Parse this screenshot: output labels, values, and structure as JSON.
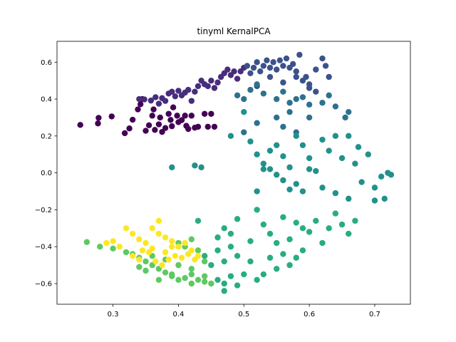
{
  "chart_data": {
    "type": "scatter",
    "title": "tinyml KernalPCA",
    "xlabel": "",
    "ylabel": "",
    "xlim": [
      0.2144,
      0.7545
    ],
    "ylim": [
      -0.712,
      0.713
    ],
    "x_ticks": [
      "0.3",
      "0.4",
      "0.5",
      "0.6",
      "0.7"
    ],
    "y_ticks": [
      "-0.6",
      "-0.4",
      "-0.2",
      "0.0",
      "0.2",
      "0.4",
      "0.6"
    ],
    "grid": false,
    "legend": "none",
    "colormap": "viridis",
    "series": [
      {
        "color": "#440154",
        "points": [
          [
            0.25,
            0.26
          ],
          [
            0.277,
            0.268
          ],
          [
            0.278,
            0.298
          ],
          [
            0.298,
            0.306
          ],
          [
            0.318,
            0.215
          ],
          [
            0.325,
            0.241
          ],
          [
            0.33,
            0.288
          ],
          [
            0.338,
            0.344
          ],
          [
            0.342,
            0.372
          ],
          [
            0.345,
            0.4
          ],
          [
            0.35,
            0.228
          ],
          [
            0.355,
            0.258
          ],
          [
            0.36,
            0.31
          ],
          [
            0.362,
            0.344
          ],
          [
            0.364,
            0.233
          ],
          [
            0.37,
            0.263
          ],
          [
            0.372,
            0.3
          ],
          [
            0.375,
            0.222
          ],
          [
            0.38,
            0.243
          ],
          [
            0.385,
            0.32
          ],
          [
            0.388,
            0.287
          ],
          [
            0.39,
            0.253
          ],
          [
            0.392,
            0.355
          ],
          [
            0.398,
            0.31
          ],
          [
            0.4,
            0.275
          ],
          [
            0.405,
            0.286
          ],
          [
            0.41,
            0.31
          ],
          [
            0.412,
            0.255
          ],
          [
            0.415,
            0.238
          ],
          [
            0.42,
            0.31
          ],
          [
            0.425,
            0.245
          ],
          [
            0.43,
            0.25
          ],
          [
            0.44,
            0.32
          ],
          [
            0.445,
            0.25
          ],
          [
            0.45,
            0.32
          ],
          [
            0.455,
            0.25
          ]
        ]
      },
      {
        "color": "#472d7b",
        "points": [
          [
            0.34,
            0.4
          ],
          [
            0.348,
            0.398
          ],
          [
            0.358,
            0.392
          ],
          [
            0.365,
            0.41
          ],
          [
            0.37,
            0.375
          ],
          [
            0.375,
            0.405
          ],
          [
            0.38,
            0.39
          ],
          [
            0.385,
            0.43
          ],
          [
            0.39,
            0.44
          ],
          [
            0.395,
            0.415
          ],
          [
            0.4,
            0.445
          ],
          [
            0.405,
            0.42
          ],
          [
            0.41,
            0.435
          ],
          [
            0.415,
            0.45
          ],
          [
            0.42,
            0.39
          ],
          [
            0.425,
            0.44
          ],
          [
            0.43,
            0.47
          ],
          [
            0.435,
            0.5
          ],
          [
            0.44,
            0.48
          ],
          [
            0.445,
            0.47
          ],
          [
            0.45,
            0.5
          ],
          [
            0.455,
            0.46
          ],
          [
            0.46,
            0.49
          ],
          [
            0.465,
            0.52
          ],
          [
            0.47,
            0.54
          ],
          [
            0.475,
            0.56
          ],
          [
            0.48,
            0.53
          ],
          [
            0.485,
            0.55
          ],
          [
            0.49,
            0.51
          ],
          [
            0.495,
            0.55
          ],
          [
            0.5,
            0.57
          ]
        ]
      },
      {
        "color": "#3b528b",
        "points": [
          [
            0.505,
            0.58
          ],
          [
            0.51,
            0.54
          ],
          [
            0.515,
            0.57
          ],
          [
            0.52,
            0.6
          ],
          [
            0.525,
            0.55
          ],
          [
            0.53,
            0.58
          ],
          [
            0.535,
            0.61
          ],
          [
            0.54,
            0.57
          ],
          [
            0.545,
            0.6
          ],
          [
            0.55,
            0.56
          ],
          [
            0.555,
            0.61
          ],
          [
            0.56,
            0.58
          ],
          [
            0.565,
            0.62
          ],
          [
            0.57,
            0.57
          ],
          [
            0.575,
            0.59
          ],
          [
            0.58,
            0.55
          ],
          [
            0.585,
            0.64
          ],
          [
            0.59,
            0.5
          ],
          [
            0.595,
            0.52
          ],
          [
            0.6,
            0.48
          ],
          [
            0.61,
            0.56
          ],
          [
            0.62,
            0.62
          ],
          [
            0.625,
            0.58
          ],
          [
            0.63,
            0.52
          ],
          [
            0.52,
            0.47
          ],
          [
            0.54,
            0.52
          ],
          [
            0.56,
            0.49
          ],
          [
            0.58,
            0.52
          ],
          [
            0.6,
            0.46
          ],
          [
            0.61,
            0.44
          ]
        ]
      },
      {
        "color": "#2c728e",
        "points": [
          [
            0.49,
            0.42
          ],
          [
            0.5,
            0.4
          ],
          [
            0.51,
            0.45
          ],
          [
            0.52,
            0.48
          ],
          [
            0.53,
            0.43
          ],
          [
            0.55,
            0.4
          ],
          [
            0.56,
            0.44
          ],
          [
            0.57,
            0.38
          ],
          [
            0.58,
            0.4
          ],
          [
            0.59,
            0.41
          ],
          [
            0.6,
            0.37
          ],
          [
            0.62,
            0.38
          ],
          [
            0.63,
            0.42
          ],
          [
            0.64,
            0.36
          ],
          [
            0.66,
            0.33
          ],
          [
            0.655,
            0.3
          ],
          [
            0.55,
            0.3
          ],
          [
            0.57,
            0.33
          ],
          [
            0.56,
            0.25
          ],
          [
            0.58,
            0.22
          ],
          [
            0.6,
            0.3
          ],
          [
            0.52,
            0.27
          ],
          [
            0.5,
            0.22
          ]
        ]
      },
      {
        "color": "#21918c",
        "points": [
          [
            0.39,
            0.03
          ],
          [
            0.425,
            0.04
          ],
          [
            0.435,
            0.03
          ],
          [
            0.48,
            0.2
          ],
          [
            0.5,
            0.33
          ],
          [
            0.51,
            0.17
          ],
          [
            0.52,
            0.1
          ],
          [
            0.53,
            0.02
          ],
          [
            0.54,
            0.12
          ],
          [
            0.55,
            0.15
          ],
          [
            0.56,
            0.09
          ],
          [
            0.57,
            0.03
          ],
          [
            0.58,
            0.2
          ],
          [
            0.59,
            0.15
          ],
          [
            0.6,
            0.08
          ],
          [
            0.61,
            0.01
          ],
          [
            0.62,
            0.18
          ],
          [
            0.63,
            0.12
          ],
          [
            0.64,
            0.2
          ],
          [
            0.65,
            0.08
          ],
          [
            0.66,
            0.2
          ],
          [
            0.67,
            0.05
          ],
          [
            0.675,
            0.14
          ],
          [
            0.68,
            -0.05
          ],
          [
            0.69,
            0.1
          ],
          [
            0.7,
            -0.08
          ],
          [
            0.71,
            -0.02
          ],
          [
            0.72,
            0.0
          ],
          [
            0.725,
            -0.01
          ],
          [
            0.715,
            -0.14
          ],
          [
            0.6,
            0.02
          ],
          [
            0.59,
            -0.1
          ],
          [
            0.58,
            -0.06
          ],
          [
            0.57,
            -0.09
          ],
          [
            0.56,
            -0.04
          ],
          [
            0.55,
            -0.01
          ],
          [
            0.54,
            0.02
          ],
          [
            0.53,
            0.05
          ],
          [
            0.52,
            -0.1
          ],
          [
            0.62,
            -0.08
          ],
          [
            0.64,
            -0.11
          ],
          [
            0.66,
            -0.14
          ],
          [
            0.7,
            -0.15
          ]
        ]
      },
      {
        "color": "#27ad81",
        "points": [
          [
            0.43,
            -0.26
          ],
          [
            0.46,
            -0.35
          ],
          [
            0.47,
            -0.3
          ],
          [
            0.48,
            -0.33
          ],
          [
            0.49,
            -0.25
          ],
          [
            0.51,
            -0.37
          ],
          [
            0.52,
            -0.2
          ],
          [
            0.53,
            -0.28
          ],
          [
            0.54,
            -0.33
          ],
          [
            0.55,
            -0.38
          ],
          [
            0.56,
            -0.24
          ],
          [
            0.57,
            -0.36
          ],
          [
            0.58,
            -0.27
          ],
          [
            0.59,
            -0.3
          ],
          [
            0.6,
            -0.32
          ],
          [
            0.61,
            -0.26
          ],
          [
            0.62,
            -0.38
          ],
          [
            0.63,
            -0.3
          ],
          [
            0.64,
            -0.22
          ],
          [
            0.65,
            -0.28
          ],
          [
            0.66,
            -0.33
          ],
          [
            0.67,
            -0.26
          ],
          [
            0.44,
            -0.45
          ],
          [
            0.45,
            -0.5
          ],
          [
            0.46,
            -0.42
          ],
          [
            0.47,
            -0.48
          ],
          [
            0.48,
            -0.4
          ],
          [
            0.49,
            -0.45
          ],
          [
            0.5,
            -0.55
          ],
          [
            0.51,
            -0.48
          ],
          [
            0.52,
            -0.58
          ],
          [
            0.53,
            -0.55
          ],
          [
            0.54,
            -0.46
          ],
          [
            0.55,
            -0.52
          ],
          [
            0.56,
            -0.44
          ],
          [
            0.57,
            -0.5
          ],
          [
            0.58,
            -0.46
          ],
          [
            0.59,
            -0.42
          ],
          [
            0.46,
            -0.58
          ],
          [
            0.47,
            -0.6
          ],
          [
            0.48,
            -0.56
          ],
          [
            0.49,
            -0.61
          ],
          [
            0.47,
            -0.64
          ]
        ]
      },
      {
        "color": "#5ec962",
        "points": [
          [
            0.26,
            -0.375
          ],
          [
            0.28,
            -0.4
          ],
          [
            0.3,
            -0.41
          ],
          [
            0.32,
            -0.43
          ],
          [
            0.33,
            -0.44
          ],
          [
            0.34,
            -0.46
          ],
          [
            0.35,
            -0.48
          ],
          [
            0.36,
            -0.5
          ],
          [
            0.37,
            -0.52
          ],
          [
            0.38,
            -0.54
          ],
          [
            0.39,
            -0.56
          ],
          [
            0.4,
            -0.58
          ],
          [
            0.41,
            -0.57
          ],
          [
            0.42,
            -0.6
          ],
          [
            0.43,
            -0.58
          ],
          [
            0.44,
            -0.59
          ],
          [
            0.45,
            -0.6
          ],
          [
            0.36,
            -0.45
          ],
          [
            0.38,
            -0.47
          ],
          [
            0.4,
            -0.5
          ],
          [
            0.42,
            -0.52
          ],
          [
            0.44,
            -0.48
          ],
          [
            0.4,
            -0.38
          ],
          [
            0.41,
            -0.4
          ],
          [
            0.42,
            -0.36
          ],
          [
            0.43,
            -0.42
          ],
          [
            0.39,
            -0.55
          ],
          [
            0.37,
            -0.58
          ],
          [
            0.35,
            -0.53
          ],
          [
            0.34,
            -0.51
          ],
          [
            0.42,
            -0.55
          ],
          [
            0.44,
            -0.56
          ]
        ]
      },
      {
        "color": "#fde725",
        "points": [
          [
            0.32,
            -0.3
          ],
          [
            0.33,
            -0.33
          ],
          [
            0.34,
            -0.36
          ],
          [
            0.35,
            -0.38
          ],
          [
            0.36,
            -0.3
          ],
          [
            0.37,
            -0.26
          ],
          [
            0.37,
            -0.33
          ],
          [
            0.38,
            -0.35
          ],
          [
            0.39,
            -0.37
          ],
          [
            0.4,
            -0.4
          ],
          [
            0.41,
            -0.38
          ],
          [
            0.42,
            -0.42
          ],
          [
            0.43,
            -0.45
          ],
          [
            0.36,
            -0.41
          ],
          [
            0.38,
            -0.43
          ],
          [
            0.3,
            -0.37
          ],
          [
            0.31,
            -0.4
          ],
          [
            0.29,
            -0.38
          ],
          [
            0.33,
            -0.45
          ],
          [
            0.34,
            -0.47
          ],
          [
            0.355,
            -0.43
          ],
          [
            0.365,
            -0.48
          ],
          [
            0.375,
            -0.5
          ],
          [
            0.385,
            -0.47
          ],
          [
            0.395,
            -0.45
          ],
          [
            0.405,
            -0.46
          ],
          [
            0.415,
            -0.44
          ],
          [
            0.425,
            -0.47
          ],
          [
            0.345,
            -0.42
          ],
          [
            0.39,
            -0.4
          ]
        ]
      }
    ]
  }
}
